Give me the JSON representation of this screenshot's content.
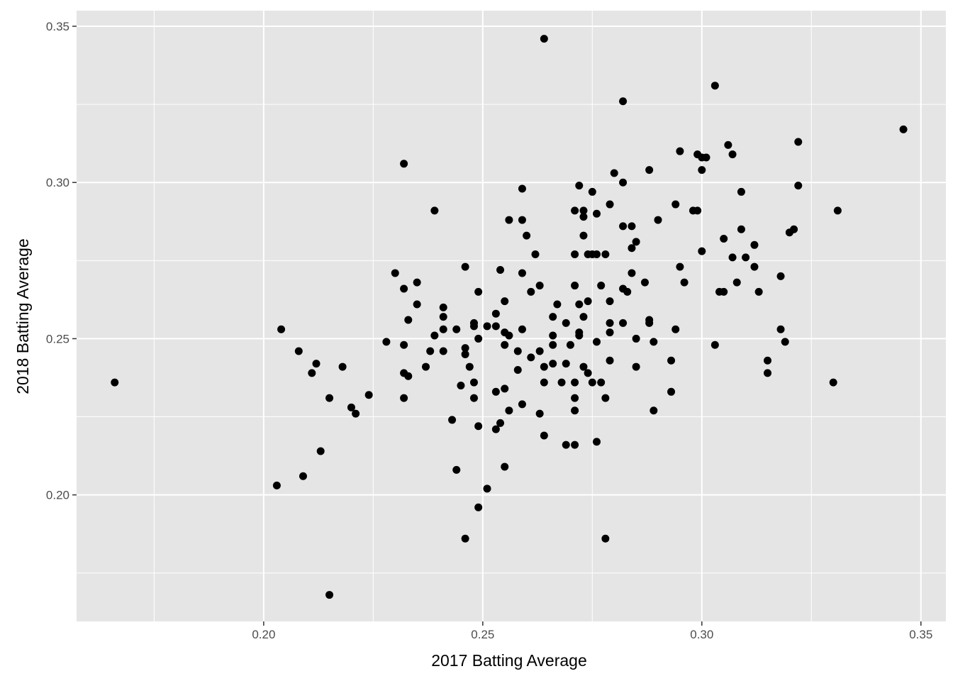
{
  "chart_data": {
    "type": "scatter",
    "title": "",
    "xlabel": "2017 Batting Average",
    "ylabel": "2018 Batting Average",
    "xlim": [
      0.1573,
      0.3557
    ],
    "ylim": [
      0.1595,
      0.355
    ],
    "x_ticks": [
      "0.20",
      "0.25",
      "0.30",
      "0.35"
    ],
    "y_ticks": [
      "0.20",
      "0.25",
      "0.30",
      "0.35"
    ],
    "grid": true,
    "colors": {
      "panel": "#e5e5e5",
      "grid": "#ffffff",
      "point": "#000000"
    },
    "points": [
      [
        0.166,
        0.236
      ],
      [
        0.264,
        0.346
      ],
      [
        0.303,
        0.331
      ],
      [
        0.282,
        0.326
      ],
      [
        0.346,
        0.317
      ],
      [
        0.322,
        0.313
      ],
      [
        0.306,
        0.312
      ],
      [
        0.307,
        0.309
      ],
      [
        0.295,
        0.31
      ],
      [
        0.299,
        0.309
      ],
      [
        0.3,
        0.308
      ],
      [
        0.301,
        0.308
      ],
      [
        0.3,
        0.304
      ],
      [
        0.288,
        0.304
      ],
      [
        0.28,
        0.303
      ],
      [
        0.232,
        0.306
      ],
      [
        0.282,
        0.3
      ],
      [
        0.272,
        0.299
      ],
      [
        0.259,
        0.298
      ],
      [
        0.275,
        0.297
      ],
      [
        0.322,
        0.299
      ],
      [
        0.309,
        0.297
      ],
      [
        0.331,
        0.291
      ],
      [
        0.239,
        0.291
      ],
      [
        0.294,
        0.293
      ],
      [
        0.279,
        0.293
      ],
      [
        0.271,
        0.291
      ],
      [
        0.273,
        0.291
      ],
      [
        0.276,
        0.29
      ],
      [
        0.298,
        0.291
      ],
      [
        0.299,
        0.291
      ],
      [
        0.256,
        0.288
      ],
      [
        0.259,
        0.288
      ],
      [
        0.273,
        0.289
      ],
      [
        0.29,
        0.288
      ],
      [
        0.284,
        0.286
      ],
      [
        0.282,
        0.286
      ],
      [
        0.309,
        0.285
      ],
      [
        0.32,
        0.284
      ],
      [
        0.321,
        0.285
      ],
      [
        0.273,
        0.283
      ],
      [
        0.26,
        0.283
      ],
      [
        0.305,
        0.282
      ],
      [
        0.285,
        0.281
      ],
      [
        0.312,
        0.28
      ],
      [
        0.284,
        0.279
      ],
      [
        0.3,
        0.278
      ],
      [
        0.271,
        0.277
      ],
      [
        0.274,
        0.277
      ],
      [
        0.275,
        0.277
      ],
      [
        0.276,
        0.277
      ],
      [
        0.278,
        0.277
      ],
      [
        0.262,
        0.277
      ],
      [
        0.31,
        0.276
      ],
      [
        0.307,
        0.276
      ],
      [
        0.312,
        0.273
      ],
      [
        0.295,
        0.273
      ],
      [
        0.246,
        0.273
      ],
      [
        0.254,
        0.272
      ],
      [
        0.284,
        0.271
      ],
      [
        0.23,
        0.271
      ],
      [
        0.259,
        0.271
      ],
      [
        0.318,
        0.27
      ],
      [
        0.296,
        0.268
      ],
      [
        0.287,
        0.268
      ],
      [
        0.308,
        0.268
      ],
      [
        0.235,
        0.268
      ],
      [
        0.263,
        0.267
      ],
      [
        0.271,
        0.267
      ],
      [
        0.277,
        0.267
      ],
      [
        0.282,
        0.266
      ],
      [
        0.232,
        0.266
      ],
      [
        0.261,
        0.265
      ],
      [
        0.283,
        0.265
      ],
      [
        0.304,
        0.265
      ],
      [
        0.305,
        0.265
      ],
      [
        0.313,
        0.265
      ],
      [
        0.249,
        0.265
      ],
      [
        0.279,
        0.262
      ],
      [
        0.274,
        0.262
      ],
      [
        0.272,
        0.261
      ],
      [
        0.255,
        0.262
      ],
      [
        0.267,
        0.261
      ],
      [
        0.235,
        0.261
      ],
      [
        0.241,
        0.26
      ],
      [
        0.241,
        0.257
      ],
      [
        0.253,
        0.258
      ],
      [
        0.273,
        0.257
      ],
      [
        0.266,
        0.257
      ],
      [
        0.288,
        0.256
      ],
      [
        0.288,
        0.255
      ],
      [
        0.233,
        0.256
      ],
      [
        0.269,
        0.255
      ],
      [
        0.279,
        0.255
      ],
      [
        0.282,
        0.255
      ],
      [
        0.244,
        0.253
      ],
      [
        0.241,
        0.253
      ],
      [
        0.204,
        0.253
      ],
      [
        0.248,
        0.255
      ],
      [
        0.248,
        0.254
      ],
      [
        0.251,
        0.254
      ],
      [
        0.253,
        0.254
      ],
      [
        0.259,
        0.253
      ],
      [
        0.294,
        0.253
      ],
      [
        0.318,
        0.253
      ],
      [
        0.255,
        0.252
      ],
      [
        0.256,
        0.251
      ],
      [
        0.279,
        0.252
      ],
      [
        0.272,
        0.252
      ],
      [
        0.272,
        0.251
      ],
      [
        0.266,
        0.251
      ],
      [
        0.266,
        0.248
      ],
      [
        0.239,
        0.251
      ],
      [
        0.249,
        0.25
      ],
      [
        0.285,
        0.25
      ],
      [
        0.289,
        0.249
      ],
      [
        0.276,
        0.249
      ],
      [
        0.319,
        0.249
      ],
      [
        0.228,
        0.249
      ],
      [
        0.232,
        0.248
      ],
      [
        0.255,
        0.248
      ],
      [
        0.27,
        0.248
      ],
      [
        0.246,
        0.247
      ],
      [
        0.303,
        0.248
      ],
      [
        0.238,
        0.246
      ],
      [
        0.241,
        0.246
      ],
      [
        0.246,
        0.245
      ],
      [
        0.258,
        0.246
      ],
      [
        0.263,
        0.246
      ],
      [
        0.208,
        0.246
      ],
      [
        0.261,
        0.244
      ],
      [
        0.212,
        0.242
      ],
      [
        0.218,
        0.241
      ],
      [
        0.315,
        0.243
      ],
      [
        0.293,
        0.243
      ],
      [
        0.264,
        0.241
      ],
      [
        0.266,
        0.242
      ],
      [
        0.269,
        0.242
      ],
      [
        0.273,
        0.241
      ],
      [
        0.247,
        0.241
      ],
      [
        0.285,
        0.241
      ],
      [
        0.279,
        0.243
      ],
      [
        0.237,
        0.241
      ],
      [
        0.258,
        0.24
      ],
      [
        0.274,
        0.239
      ],
      [
        0.315,
        0.239
      ],
      [
        0.211,
        0.239
      ],
      [
        0.232,
        0.239
      ],
      [
        0.233,
        0.238
      ],
      [
        0.271,
        0.236
      ],
      [
        0.268,
        0.236
      ],
      [
        0.275,
        0.236
      ],
      [
        0.277,
        0.236
      ],
      [
        0.264,
        0.236
      ],
      [
        0.248,
        0.236
      ],
      [
        0.33,
        0.236
      ],
      [
        0.245,
        0.235
      ],
      [
        0.255,
        0.234
      ],
      [
        0.253,
        0.233
      ],
      [
        0.293,
        0.233
      ],
      [
        0.224,
        0.232
      ],
      [
        0.248,
        0.231
      ],
      [
        0.215,
        0.231
      ],
      [
        0.271,
        0.231
      ],
      [
        0.232,
        0.231
      ],
      [
        0.278,
        0.231
      ],
      [
        0.259,
        0.229
      ],
      [
        0.22,
        0.228
      ],
      [
        0.289,
        0.227
      ],
      [
        0.256,
        0.227
      ],
      [
        0.271,
        0.227
      ],
      [
        0.263,
        0.226
      ],
      [
        0.221,
        0.226
      ],
      [
        0.243,
        0.224
      ],
      [
        0.254,
        0.223
      ],
      [
        0.249,
        0.222
      ],
      [
        0.253,
        0.221
      ],
      [
        0.264,
        0.219
      ],
      [
        0.276,
        0.217
      ],
      [
        0.269,
        0.216
      ],
      [
        0.271,
        0.216
      ],
      [
        0.213,
        0.214
      ],
      [
        0.244,
        0.208
      ],
      [
        0.255,
        0.209
      ],
      [
        0.209,
        0.206
      ],
      [
        0.203,
        0.203
      ],
      [
        0.251,
        0.202
      ],
      [
        0.249,
        0.196
      ],
      [
        0.246,
        0.186
      ],
      [
        0.278,
        0.186
      ],
      [
        0.215,
        0.168
      ]
    ]
  }
}
